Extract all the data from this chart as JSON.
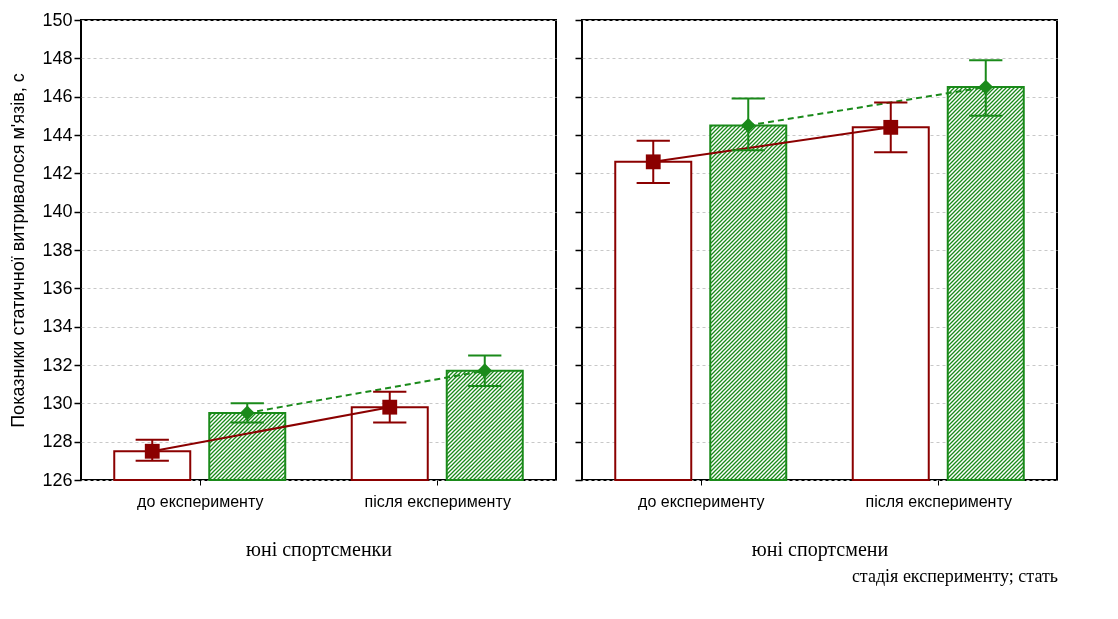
{
  "chart_data": [
    {
      "type": "bar",
      "xlabel": "юні спортсменки",
      "ylabel": "Показники статичної витривалося м'язів, с",
      "categories": [
        "до експерименту",
        "після експерименту"
      ],
      "ylim": [
        126,
        150
      ],
      "yticks": [
        126,
        128,
        130,
        132,
        134,
        136,
        138,
        140,
        142,
        144,
        146,
        148,
        150
      ],
      "grid": "y",
      "series": [
        {
          "color": "#8b0000",
          "values": [
            127.5,
            129.8
          ]
        },
        {
          "color": "#1a8a1a",
          "values": [
            129.5,
            131.7
          ]
        },
        {
          "type": "line",
          "color": "#8b0000",
          "values": [
            127.5,
            129.8
          ],
          "errors": [
            [
              127.0,
              128.1
            ],
            [
              129.0,
              130.6
            ]
          ],
          "marker": "square",
          "line_style": "solid"
        },
        {
          "type": "line",
          "color": "#1a8a1a",
          "values": [
            129.5,
            131.7
          ],
          "errors": [
            [
              129.0,
              130.0
            ],
            [
              130.9,
              132.5
            ]
          ],
          "marker": "diamond",
          "line_style": "dashed"
        }
      ]
    },
    {
      "type": "bar",
      "xlabel": "юні спортсмени",
      "categories": [
        "до експерименту",
        "після експерименту"
      ],
      "ylim": [
        126,
        150
      ],
      "yticks": [
        126,
        128,
        130,
        132,
        134,
        136,
        138,
        140,
        142,
        144,
        146,
        148,
        150
      ],
      "grid": "y",
      "tick_labels": "x",
      "annotations": [
        "стадія експерименту; стать"
      ],
      "series": [
        {
          "color": "#8b0000",
          "values": [
            142.6,
            144.4
          ]
        },
        {
          "color": "#1a8a1a",
          "values": [
            144.5,
            146.5
          ]
        },
        {
          "type": "line",
          "color": "#8b0000",
          "values": [
            142.6,
            144.4
          ],
          "errors": [
            [
              141.5,
              143.7
            ],
            [
              143.1,
              145.7
            ]
          ],
          "marker": "square",
          "line_style": "solid"
        },
        {
          "type": "line",
          "color": "#1a8a1a",
          "values": [
            144.5,
            146.5
          ],
          "errors": [
            [
              143.2,
              145.9
            ],
            [
              145.0,
              147.9
            ]
          ],
          "marker": "diamond",
          "line_style": "dashed"
        }
      ]
    }
  ]
}
